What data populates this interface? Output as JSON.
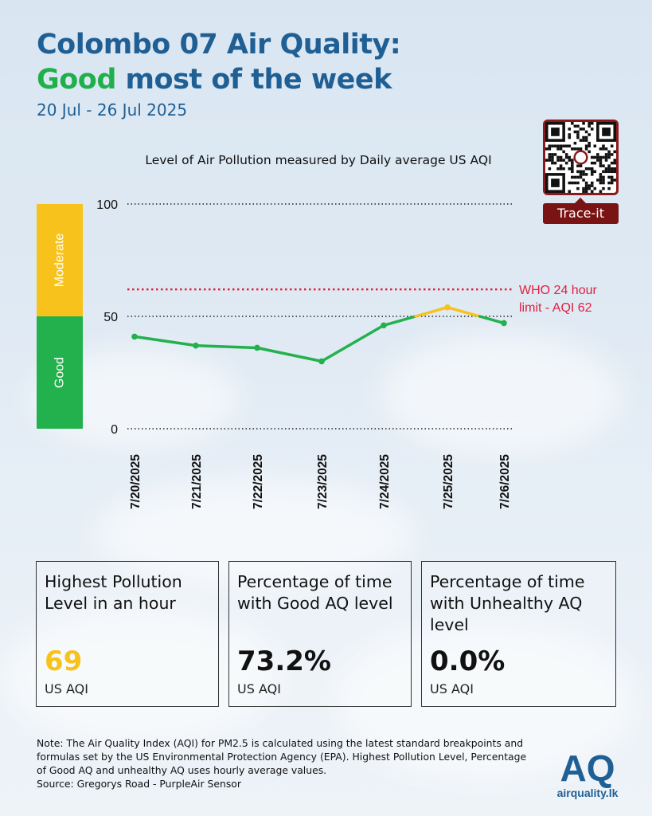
{
  "header": {
    "title_line1": "Colombo 07 Air Quality:",
    "title_good": "Good",
    "title_rest": " most of the week",
    "date_range": "20 Jul - 26 Jul 2025"
  },
  "qr": {
    "button_label": "Trace-it"
  },
  "chart_data": {
    "type": "line",
    "title": "Level of Air Pollution measured by Daily average US AQI",
    "categories": [
      "7/20/2025",
      "7/21/2025",
      "7/22/2025",
      "7/23/2025",
      "7/24/2025",
      "7/25/2025",
      "7/26/2025"
    ],
    "series": [
      {
        "values": [
          41,
          37,
          36,
          30,
          46,
          54,
          47
        ]
      }
    ],
    "ylim": [
      0,
      100
    ],
    "yticks": [
      0,
      50,
      100
    ],
    "bands": [
      {
        "label": "Good",
        "from": 0,
        "to": 50,
        "color": "#22b14c"
      },
      {
        "label": "Moderate",
        "from": 50,
        "to": 100,
        "color": "#f7c21b"
      }
    ],
    "threshold": {
      "value": 62,
      "label_line1": "WHO 24 hour",
      "label_line2": "limit - AQI 62",
      "color": "#e0203e"
    },
    "colors": {
      "good_line": "#22b14c",
      "moderate_line": "#f7c21b",
      "grid": "#222222"
    },
    "grid": true
  },
  "cards": [
    {
      "label": "Highest Pollution Level in an hour",
      "value": "69",
      "unit": "US AQI",
      "value_color": "#f7c21b"
    },
    {
      "label": "Percentage of time with Good AQ level",
      "value": "73.2%",
      "unit": "US AQI",
      "value_color": "#111111"
    },
    {
      "label": "Percentage of time with Unhealthy AQ level",
      "value": "0.0%",
      "unit": "US AQI",
      "value_color": "#111111"
    }
  ],
  "note": {
    "text": "Note: The Air Quality Index (AQI) for PM2.5 is calculated using the latest standard breakpoints and formulas set by the US Environmental Protection Agency (EPA). Highest Pollution Level, Percentage of Good AQ and unhealthy AQ uses hourly average values.",
    "source": "Source: Gregorys Road - PurpleAir Sensor"
  },
  "logo": {
    "mark": "AQ",
    "site": "airquality.lk",
    "color": "#1f5f94"
  }
}
